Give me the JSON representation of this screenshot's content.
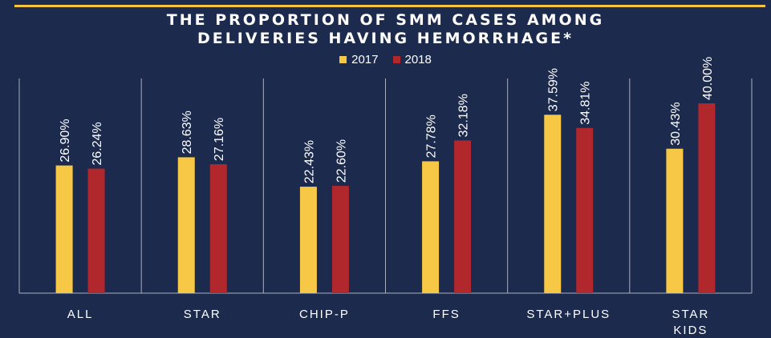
{
  "title_lines": [
    "THE PROPORTION OF SMM CASES AMONG",
    "DELIVERIES HAVING HEMORRHAGE*"
  ],
  "colors": {
    "background": "#1c2a4e",
    "accent_line": "#f5c542",
    "series_2017": "#f7c845",
    "series_2018": "#b0272c",
    "grid": "#a8b0c2"
  },
  "chart_data": {
    "type": "bar",
    "title": "THE PROPORTION OF SMM CASES AMONG DELIVERIES HAVING HEMORRHAGE*",
    "categories": [
      "ALL",
      "STAR",
      "CHIP-P",
      "FFS",
      "STAR+PLUS",
      "STAR KIDS"
    ],
    "category_lines": [
      [
        "ALL"
      ],
      [
        "STAR"
      ],
      [
        "CHIP-P"
      ],
      [
        "FFS"
      ],
      [
        "STAR+PLUS"
      ],
      [
        "STAR",
        "KIDS"
      ]
    ],
    "series": [
      {
        "name": "2017",
        "values": [
          26.9,
          28.63,
          22.43,
          27.78,
          37.59,
          30.43
        ],
        "labels": [
          "26.90%",
          "28.63%",
          "22.43%",
          "27.78%",
          "37.59%",
          "30.43%"
        ]
      },
      {
        "name": "2018",
        "values": [
          26.24,
          27.16,
          22.6,
          32.18,
          34.81,
          40.0
        ],
        "labels": [
          "26.24%",
          "27.16%",
          "22.60%",
          "32.18%",
          "34.81%",
          "40.00%"
        ]
      }
    ],
    "ylim": [
      0,
      40
    ],
    "legend_position": "top-center",
    "grid": "vertical separators",
    "xlabel": "",
    "ylabel": ""
  }
}
